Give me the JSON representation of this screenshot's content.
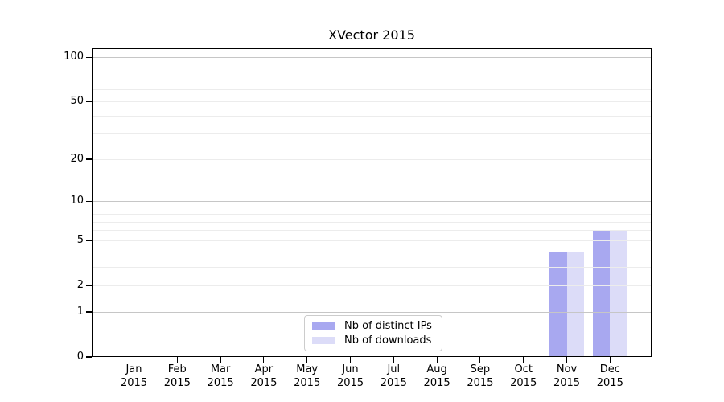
{
  "chart_data": {
    "type": "bar",
    "title": "XVector 2015",
    "categories": [
      "Jan 2015",
      "Feb 2015",
      "Mar 2015",
      "Apr 2015",
      "May 2015",
      "Jun 2015",
      "Jul 2015",
      "Aug 2015",
      "Sep 2015",
      "Oct 2015",
      "Nov 2015",
      "Dec 2015"
    ],
    "series": [
      {
        "name": "Nb of distinct IPs",
        "color": "#a8a8f0",
        "values": [
          0,
          0,
          0,
          0,
          0,
          0,
          0,
          0,
          0,
          0,
          4,
          6
        ]
      },
      {
        "name": "Nb of downloads",
        "color": "#dcdcf8",
        "values": [
          0,
          0,
          0,
          0,
          0,
          0,
          0,
          0,
          0,
          0,
          4,
          6
        ]
      }
    ],
    "y_axis": {
      "scale": "log1p",
      "ylim": [
        0,
        115
      ],
      "labeled_ticks": [
        0,
        1,
        2,
        5,
        10,
        20,
        50,
        100
      ],
      "major_gridlines": [
        1,
        10,
        100
      ],
      "minor_gridlines": [
        2,
        3,
        4,
        5,
        6,
        7,
        8,
        9,
        20,
        30,
        40,
        50,
        60,
        70,
        80,
        90
      ],
      "major_grid_color": "#c6c6c6",
      "minor_grid_color": "#ececec"
    },
    "x_axis": {
      "tick_label_lines": 2
    },
    "legend": {
      "position": "lower center"
    },
    "grid": true,
    "colors": {
      "background": "#ffffff",
      "axis": "#000000",
      "legend_border": "#cccccc"
    }
  }
}
